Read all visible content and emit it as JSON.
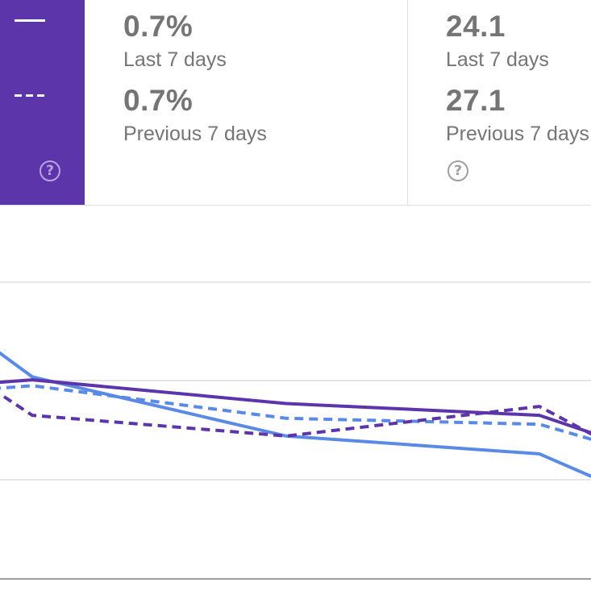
{
  "legend": {
    "current_label": "",
    "previous_label": "",
    "help_icon": "help-circle-icon"
  },
  "metrics": [
    {
      "current_value": "0.7%",
      "current_label": "Last 7 days",
      "previous_value": "0.7%",
      "previous_label": "Previous 7 days",
      "help_icon": "help-circle-icon"
    },
    {
      "current_value": "24.1",
      "current_label": "Last 7 days",
      "previous_value": "27.1",
      "previous_label": "Previous 7 days"
    }
  ],
  "colors": {
    "purple": "#5c35aa",
    "blue": "#5a8ae6",
    "grid": "#e6e6e6",
    "axis": "#9e9e9e",
    "text": "#757575"
  },
  "chart_data": {
    "type": "line",
    "x": [
      0,
      1,
      2,
      3,
      4
    ],
    "grid": true,
    "series": [
      {
        "values": [
          22,
          32,
          52,
          58,
          67
        ],
        "color": "#5a8ae6",
        "style": "solid"
      },
      {
        "values": [
          36,
          35,
          46,
          48,
          54
        ],
        "color": "#5a8ae6",
        "style": "dashed"
      },
      {
        "values": [
          36,
          45,
          52,
          42,
          53
        ],
        "color": "#5c35aa",
        "style": "dashed"
      },
      {
        "values": [
          34,
          33,
          41,
          45,
          52
        ],
        "color": "#5c35aa",
        "style": "solid"
      }
    ]
  }
}
